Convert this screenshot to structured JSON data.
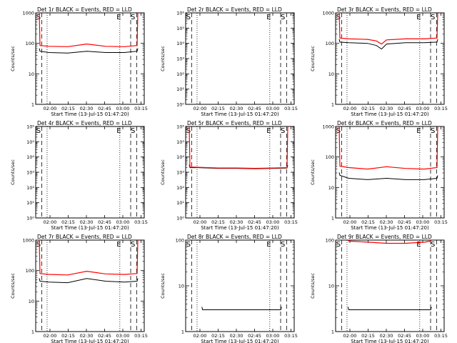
{
  "figure": {
    "xlabel": "Start Time (13-Jul-15 01:47:20)",
    "ylabel": "Counts/sec",
    "x_ticks": [
      "02:00",
      "02:15",
      "02:30",
      "02:45",
      "03:00",
      "03:15"
    ],
    "colors": {
      "events": "#000000",
      "lld": "#ff0000"
    }
  },
  "chart_data": [
    {
      "type": "line",
      "title": "Det 1r BLACK = Events, RED = LLD",
      "xlabel": "Start Time (13-Jul-15 01:47:20)",
      "ylabel": "Counts/sec",
      "ylog": true,
      "ylim": [
        1,
        1000
      ],
      "yticks": [
        "1",
        "10",
        "100",
        "1000"
      ],
      "markers": [
        "S",
        "E",
        "S"
      ],
      "x": [
        "01:53",
        "02:00",
        "02:15",
        "02:30",
        "02:45",
        "03:00",
        "03:10"
      ],
      "series": [
        {
          "name": "Events",
          "color": "#000000",
          "values": [
            55,
            50,
            48,
            55,
            50,
            50,
            55
          ]
        },
        {
          "name": "LLD",
          "color": "#ff0000",
          "values": [
            85,
            80,
            78,
            95,
            80,
            78,
            85
          ]
        }
      ]
    },
    {
      "type": "line",
      "title": "Det 2r BLACK = Events, RED = LLD",
      "xlabel": "Start Time (13-Jul-15 01:47:20)",
      "ylabel": "Counts/sec",
      "ylog": true,
      "ylim": [
        1,
        1000000
      ],
      "yticks": [
        "10⁰",
        "10¹",
        "10²",
        "10³",
        "10⁴",
        "10⁵",
        "10⁶"
      ],
      "markers": [
        "S",
        "E",
        "S"
      ],
      "series": []
    },
    {
      "type": "line",
      "title": "Det 3r BLACK = Events, RED = LLD",
      "xlabel": "Start Time (13-Jul-15 01:47:20)",
      "ylabel": "Counts/sec",
      "ylog": true,
      "ylim": [
        1,
        1000
      ],
      "yticks": [
        "1",
        "10",
        "100",
        "1000"
      ],
      "markers": [
        "S",
        "E",
        "S"
      ],
      "x": [
        "01:53",
        "02:00",
        "02:15",
        "02:22",
        "02:26",
        "02:30",
        "02:45",
        "03:00",
        "03:10"
      ],
      "series": [
        {
          "name": "Events",
          "color": "#000000",
          "values": [
            110,
            105,
            100,
            85,
            65,
            95,
            105,
            105,
            110
          ]
        },
        {
          "name": "LLD",
          "color": "#ff0000",
          "values": [
            150,
            140,
            135,
            120,
            95,
            130,
            140,
            140,
            150
          ]
        }
      ]
    },
    {
      "type": "line",
      "title": "Det 4r BLACK = Events, RED = LLD",
      "xlabel": "Start Time (13-Jul-15 01:47:20)",
      "ylabel": "Counts/sec",
      "ylog": true,
      "ylim": [
        1,
        1000000
      ],
      "yticks": [
        "10⁰",
        "10¹",
        "10²",
        "10³",
        "10⁴",
        "10⁵",
        "10⁶"
      ],
      "markers": [
        "S",
        "E",
        "S"
      ],
      "series": []
    },
    {
      "type": "line",
      "title": "Det 5r BLACK = Events, RED = LLD",
      "xlabel": "Start Time (13-Jul-15 01:47:20)",
      "ylabel": "Counts/sec",
      "ylog": true,
      "ylim": [
        1,
        1000000
      ],
      "yticks": [
        "10⁰",
        "10¹",
        "10²",
        "10³",
        "10⁴",
        "10⁵",
        "10⁶"
      ],
      "markers": [
        "S",
        "E",
        "S"
      ],
      "x": [
        "01:53",
        "02:00",
        "02:15",
        "02:30",
        "02:45",
        "03:00",
        "03:10"
      ],
      "series": [
        {
          "name": "Events",
          "color": "#000000",
          "values": [
            2000,
            2000,
            1800,
            1800,
            1700,
            1800,
            1900
          ]
        },
        {
          "name": "LLD",
          "color": "#ff0000",
          "values": [
            2200,
            2100,
            1900,
            1900,
            1800,
            1900,
            2000
          ]
        }
      ]
    },
    {
      "type": "line",
      "title": "Det 6r BLACK = Events, RED = LLD",
      "xlabel": "Start Time (13-Jul-15 01:47:20)",
      "ylabel": "Counts/sec",
      "ylog": true,
      "ylim": [
        1,
        1000
      ],
      "yticks": [
        "1",
        "10",
        "100",
        "1000"
      ],
      "markers": [
        "S",
        "E",
        "S"
      ],
      "x": [
        "01:53",
        "02:00",
        "02:15",
        "02:30",
        "02:45",
        "03:00",
        "03:10"
      ],
      "series": [
        {
          "name": "Events",
          "color": "#000000",
          "values": [
            25,
            20,
            18,
            20,
            18,
            18,
            20
          ]
        },
        {
          "name": "LLD",
          "color": "#ff0000",
          "values": [
            50,
            45,
            40,
            48,
            42,
            40,
            45
          ]
        }
      ]
    },
    {
      "type": "line",
      "title": "Det 7r BLACK = Events, RED = LLD",
      "xlabel": "Start Time (13-Jul-15 01:47:20)",
      "ylabel": "Counts/sec",
      "ylog": true,
      "ylim": [
        1,
        1000
      ],
      "yticks": [
        "1",
        "10",
        "100",
        "1000"
      ],
      "markers": [
        "S",
        "E",
        "S"
      ],
      "x": [
        "01:53",
        "02:00",
        "02:15",
        "02:30",
        "02:45",
        "03:00",
        "03:10"
      ],
      "series": [
        {
          "name": "Events",
          "color": "#000000",
          "values": [
            45,
            42,
            40,
            55,
            45,
            42,
            45
          ]
        },
        {
          "name": "LLD",
          "color": "#ff0000",
          "values": [
            80,
            75,
            72,
            95,
            78,
            75,
            80
          ]
        }
      ]
    },
    {
      "type": "line",
      "title": "Det 8r BLACK = Events, RED = LLD",
      "xlabel": "Start Time (13-Jul-15 01:47:20)",
      "ylabel": "Counts/sec",
      "ylog": true,
      "ylim": [
        1,
        100
      ],
      "yticks": [
        "1",
        "10",
        "100"
      ],
      "markers": [
        "S",
        "E",
        "S"
      ],
      "x": [
        "02:03",
        "02:15",
        "02:30",
        "02:45",
        "03:00",
        "03:05"
      ],
      "series": [
        {
          "name": "Events",
          "color": "#000000",
          "values": [
            3,
            3,
            3,
            3,
            3,
            3
          ]
        }
      ]
    },
    {
      "type": "line",
      "title": "Det 9r BLACK = Events, RED = LLD",
      "xlabel": "Start Time (13-Jul-15 01:47:20)",
      "ylabel": "Counts/sec",
      "ylog": true,
      "ylim": [
        1,
        100
      ],
      "yticks": [
        "1",
        "10",
        "100"
      ],
      "markers": [
        "S",
        "E",
        "S"
      ],
      "x": [
        "02:00",
        "02:15",
        "02:30",
        "02:45",
        "03:00",
        "03:05"
      ],
      "series": [
        {
          "name": "Events",
          "color": "#000000",
          "values": [
            3,
            3,
            3,
            3,
            3,
            3
          ]
        },
        {
          "name": "LLD",
          "color": "#ff0000",
          "values": [
            95,
            90,
            85,
            85,
            90,
            95
          ]
        }
      ]
    }
  ]
}
